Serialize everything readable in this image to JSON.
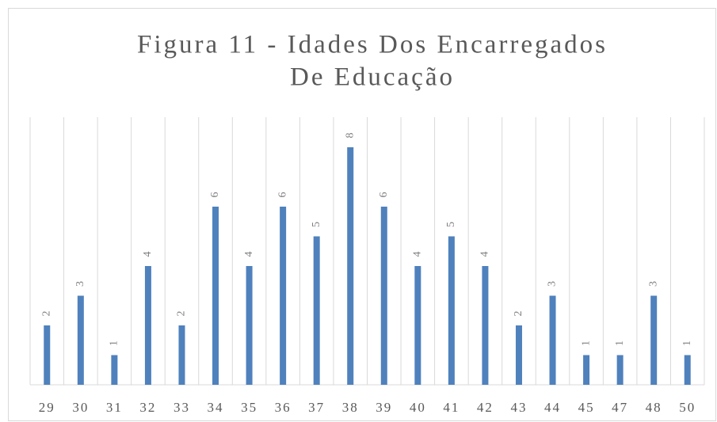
{
  "chart_data": {
    "type": "bar",
    "title": [
      "Figura 11 - Idades Dos Encarregados",
      "De Educação"
    ],
    "categories": [
      "29",
      "30",
      "31",
      "32",
      "33",
      "34",
      "35",
      "36",
      "37",
      "38",
      "39",
      "40",
      "41",
      "42",
      "43",
      "44",
      "45",
      "47",
      "48",
      "50"
    ],
    "values": [
      2,
      3,
      1,
      4,
      2,
      6,
      4,
      6,
      5,
      8,
      6,
      4,
      5,
      4,
      2,
      3,
      1,
      1,
      3,
      1
    ],
    "color": "#4f81bd",
    "grid": true
  }
}
